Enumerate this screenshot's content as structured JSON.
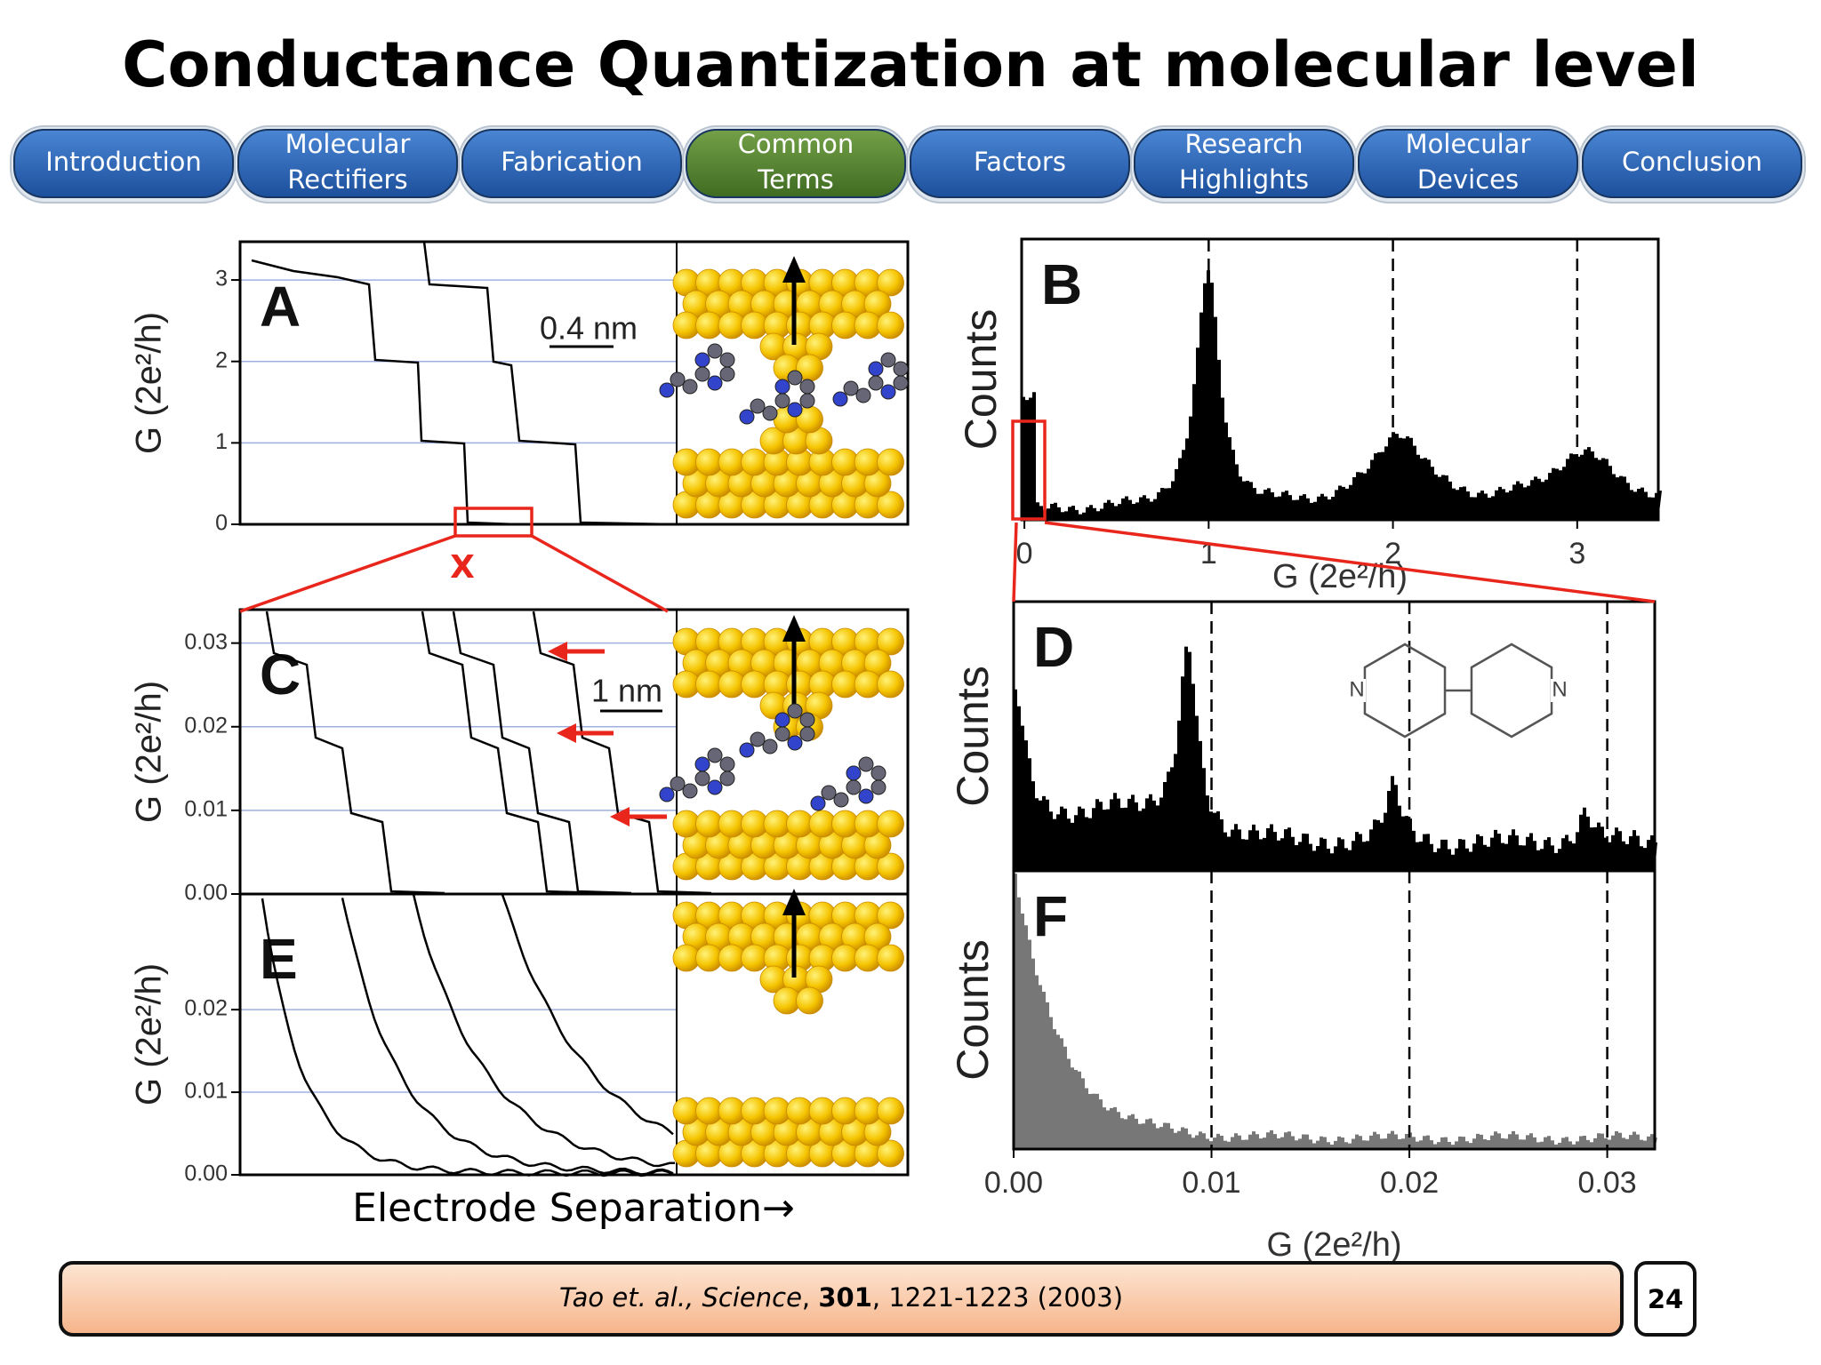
{
  "title": "Conductance Quantization at molecular level",
  "nav": [
    {
      "lines": [
        "Introduction"
      ]
    },
    {
      "lines": [
        "Molecular",
        "Rectifiers"
      ]
    },
    {
      "lines": [
        "Fabrication"
      ]
    },
    {
      "lines": [
        "Common",
        "Terms"
      ],
      "highlighted": true
    },
    {
      "lines": [
        "Factors"
      ]
    },
    {
      "lines": [
        "Research",
        "Highlights"
      ]
    },
    {
      "lines": [
        "Molecular",
        "Devices"
      ]
    },
    {
      "lines": [
        "Conclusion"
      ]
    }
  ],
  "figure": {
    "panels": {
      "A": {
        "letter": "A",
        "y_label": "G (2e²/h)",
        "ylim": [
          0,
          3.47
        ],
        "yticks": [
          0,
          1,
          2,
          3
        ],
        "scale_bar": "0.4 nm"
      },
      "C": {
        "letter": "C",
        "y_label": "G (2e²/h)",
        "ylim": [
          0,
          0.034
        ],
        "yticks": [
          {
            "value": 0,
            "label": "0.00"
          },
          0.01,
          0.02,
          0.03
        ],
        "scale_bar": "1 nm"
      },
      "E": {
        "letter": "E",
        "y_label": "G (2e²/h)",
        "ylim": [
          0,
          0.034
        ],
        "yticks": [
          {
            "value": 0,
            "label": "0.00"
          },
          0.01,
          0.02
        ]
      },
      "B": {
        "letter": "B",
        "y_label": "Counts",
        "x_label": "G (2e²/h)",
        "xlim": [
          -0.015,
          3.44
        ],
        "xticks": [
          0,
          1,
          2,
          3
        ]
      },
      "D": {
        "letter": "D",
        "y_label": "Counts",
        "xlim": [
          0,
          0.0324
        ],
        "atom_labels": [
          "N",
          "N"
        ]
      },
      "F": {
        "letter": "F",
        "y_label": "Counts",
        "x_label": "G (2e²/h)",
        "xlim": [
          0,
          0.0324
        ],
        "xticks": [
          {
            "value": 0,
            "label": "0.00"
          },
          0.01,
          0.02,
          0.03
        ]
      }
    },
    "x_caption": "Electrode Separation→",
    "marker": "X"
  },
  "footer": {
    "citation": [
      {
        "text": "Tao et. al., Science",
        "style": "italic"
      },
      {
        "text": ", "
      },
      {
        "text": "301",
        "style": "bold"
      },
      {
        "text": ", 1221-1223 (2003)"
      }
    ],
    "page_number": "24"
  }
}
